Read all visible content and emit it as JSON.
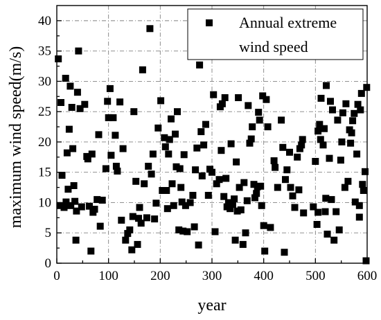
{
  "chart_data": {
    "type": "scatter",
    "xlabel": "year",
    "ylabel": "maximum wind speed(m/s)",
    "xlim": [
      0,
      600
    ],
    "ylim": [
      0,
      42.5
    ],
    "xticks": [
      0,
      100,
      200,
      300,
      400,
      500,
      600
    ],
    "yticks": [
      0,
      5,
      10,
      15,
      20,
      25,
      30,
      35,
      40
    ],
    "grid": true,
    "legend_position": "top-right",
    "series": [
      {
        "name": "Annual extreme wind speed",
        "color": "#000000",
        "marker": "square",
        "points": [
          [
            3,
            33.7
          ],
          [
            6,
            9.5
          ],
          [
            8,
            26.5
          ],
          [
            10,
            14.5
          ],
          [
            14,
            9.2
          ],
          [
            17,
            30.5
          ],
          [
            18,
            10.1
          ],
          [
            20,
            18.2
          ],
          [
            22,
            12.2
          ],
          [
            24,
            22.1
          ],
          [
            26,
            29.2
          ],
          [
            27,
            9.5
          ],
          [
            29,
            25.7
          ],
          [
            31,
            18.9
          ],
          [
            33,
            12.8
          ],
          [
            35,
            10.2
          ],
          [
            37,
            3.8
          ],
          [
            38,
            8.6
          ],
          [
            40,
            28.2
          ],
          [
            42,
            35.0
          ],
          [
            45,
            25.5
          ],
          [
            48,
            9.3
          ],
          [
            54,
            26.2
          ],
          [
            58,
            17.6
          ],
          [
            60,
            17.2
          ],
          [
            63,
            9.4
          ],
          [
            66,
            2.0
          ],
          [
            68,
            18.0
          ],
          [
            70,
            8.4
          ],
          [
            73,
            8.9
          ],
          [
            78,
            10.5
          ],
          [
            81,
            21.2
          ],
          [
            84,
            6.1
          ],
          [
            88,
            10.4
          ],
          [
            95,
            15.6
          ],
          [
            98,
            26.7
          ],
          [
            100,
            24.0
          ],
          [
            103,
            28.8
          ],
          [
            105,
            17.8
          ],
          [
            109,
            24.0
          ],
          [
            113,
            21.1
          ],
          [
            115,
            16.0
          ],
          [
            117,
            15.2
          ],
          [
            122,
            26.6
          ],
          [
            125,
            7.1
          ],
          [
            128,
            18.9
          ],
          [
            133,
            3.8
          ],
          [
            137,
            4.9
          ],
          [
            141,
            5.5
          ],
          [
            145,
            2.2
          ],
          [
            147,
            7.7
          ],
          [
            149,
            25.0
          ],
          [
            153,
            13.5
          ],
          [
            156,
            3.1
          ],
          [
            158,
            7.4
          ],
          [
            160,
            9.2
          ],
          [
            163,
            6.6
          ],
          [
            166,
            31.9
          ],
          [
            169,
            13.1
          ],
          [
            174,
            7.5
          ],
          [
            177,
            16.0
          ],
          [
            180,
            38.7
          ],
          [
            183,
            14.7
          ],
          [
            186,
            18.0
          ],
          [
            189,
            7.3
          ],
          [
            192,
            9.9
          ],
          [
            196,
            22.3
          ],
          [
            201,
            26.8
          ],
          [
            204,
            12.0
          ],
          [
            208,
            20.7
          ],
          [
            210,
            19.2
          ],
          [
            212,
            12.0
          ],
          [
            214,
            9.0
          ],
          [
            216,
            18.0
          ],
          [
            218,
            20.4
          ],
          [
            221,
            23.8
          ],
          [
            223,
            13.1
          ],
          [
            226,
            9.5
          ],
          [
            229,
            21.3
          ],
          [
            231,
            15.9
          ],
          [
            233,
            25.0
          ],
          [
            236,
            5.5
          ],
          [
            238,
            15.6
          ],
          [
            240,
            12.5
          ],
          [
            242,
            10.1
          ],
          [
            244,
            5.3
          ],
          [
            246,
            17.9
          ],
          [
            249,
            9.5
          ],
          [
            252,
            5.2
          ],
          [
            258,
            10.0
          ],
          [
            263,
            11.2
          ],
          [
            266,
            6.0
          ],
          [
            268,
            15.4
          ],
          [
            271,
            19.0
          ],
          [
            274,
            3.0
          ],
          [
            276,
            32.7
          ],
          [
            279,
            21.7
          ],
          [
            281,
            14.4
          ],
          [
            284,
            19.5
          ],
          [
            288,
            22.9
          ],
          [
            293,
            11.2
          ],
          [
            296,
            15.5
          ],
          [
            300,
            15.0
          ],
          [
            303,
            27.8
          ],
          [
            306,
            5.2
          ],
          [
            309,
            13.1
          ],
          [
            314,
            13.8
          ],
          [
            316,
            25.8
          ],
          [
            318,
            18.6
          ],
          [
            320,
            26.3
          ],
          [
            323,
            11.0
          ],
          [
            325,
            27.3
          ],
          [
            327,
            14.0
          ],
          [
            329,
            9.3
          ],
          [
            332,
            10.0
          ],
          [
            335,
            9.0
          ],
          [
            337,
            19.7
          ],
          [
            340,
            9.7
          ],
          [
            343,
            10.6
          ],
          [
            345,
            3.8
          ],
          [
            347,
            16.7
          ],
          [
            349,
            8.6
          ],
          [
            351,
            27.3
          ],
          [
            353,
            12.5
          ],
          [
            356,
            8.8
          ],
          [
            360,
            3.1
          ],
          [
            362,
            13.3
          ],
          [
            365,
            5.0
          ],
          [
            368,
            10.3
          ],
          [
            370,
            26.0
          ],
          [
            373,
            19.8
          ],
          [
            376,
            20.5
          ],
          [
            378,
            22.5
          ],
          [
            381,
            13.0
          ],
          [
            383,
            10.8
          ],
          [
            386,
            11.5
          ],
          [
            388,
            12.6
          ],
          [
            390,
            24.9
          ],
          [
            392,
            23.6
          ],
          [
            394,
            12.7
          ],
          [
            396,
            9.5
          ],
          [
            398,
            27.6
          ],
          [
            400,
            6.2
          ],
          [
            402,
            2.0
          ],
          [
            405,
            27.0
          ],
          [
            408,
            22.5
          ],
          [
            413,
            5.9
          ],
          [
            420,
            16.9
          ],
          [
            422,
            15.8
          ],
          [
            427,
            12.5
          ],
          [
            434,
            23.6
          ],
          [
            437,
            19.1
          ],
          [
            440,
            1.8
          ],
          [
            442,
            13.8
          ],
          [
            445,
            15.4
          ],
          [
            450,
            18.3
          ],
          [
            452,
            12.5
          ],
          [
            456,
            11.1
          ],
          [
            460,
            9.2
          ],
          [
            465,
            17.5
          ],
          [
            468,
            12.1
          ],
          [
            470,
            18.9
          ],
          [
            473,
            19.5
          ],
          [
            475,
            20.4
          ],
          [
            477,
            8.3
          ],
          [
            496,
            9.3
          ],
          [
            500,
            16.8
          ],
          [
            503,
            6.4
          ],
          [
            505,
            8.4
          ],
          [
            508,
            22.9
          ],
          [
            510,
            20.4
          ],
          [
            511,
            27.2
          ],
          [
            515,
            19.5
          ],
          [
            517,
            22.2
          ],
          [
            519,
            8.5
          ],
          [
            521,
            29.3
          ],
          [
            523,
            4.8
          ],
          [
            527,
            17.3
          ],
          [
            529,
            26.7
          ],
          [
            531,
            10.5
          ],
          [
            533,
            25.3
          ],
          [
            536,
            3.8
          ],
          [
            540,
            8.5
          ],
          [
            543,
            23.6
          ],
          [
            546,
            5.5
          ],
          [
            549,
            17.0
          ],
          [
            551,
            20.0
          ],
          [
            553,
            24.8
          ],
          [
            557,
            12.5
          ],
          [
            559,
            26.3
          ],
          [
            563,
            13.5
          ],
          [
            566,
            22.0
          ],
          [
            568,
            19.8
          ],
          [
            570,
            21.5
          ],
          [
            572,
            23.5
          ],
          [
            575,
            24.7
          ],
          [
            577,
            10.1
          ],
          [
            580,
            18.0
          ],
          [
            582,
            26.2
          ],
          [
            585,
            9.5
          ],
          [
            587,
            25.3
          ],
          [
            589,
            28.0
          ],
          [
            591,
            13.0
          ],
          [
            593,
            12.0
          ],
          [
            596,
            15.1
          ],
          [
            598,
            0.4
          ],
          [
            599,
            29.0
          ],
          [
            585,
            7.6
          ],
          [
            505,
            21.8
          ],
          [
            520,
            10.7
          ]
        ]
      }
    ]
  }
}
